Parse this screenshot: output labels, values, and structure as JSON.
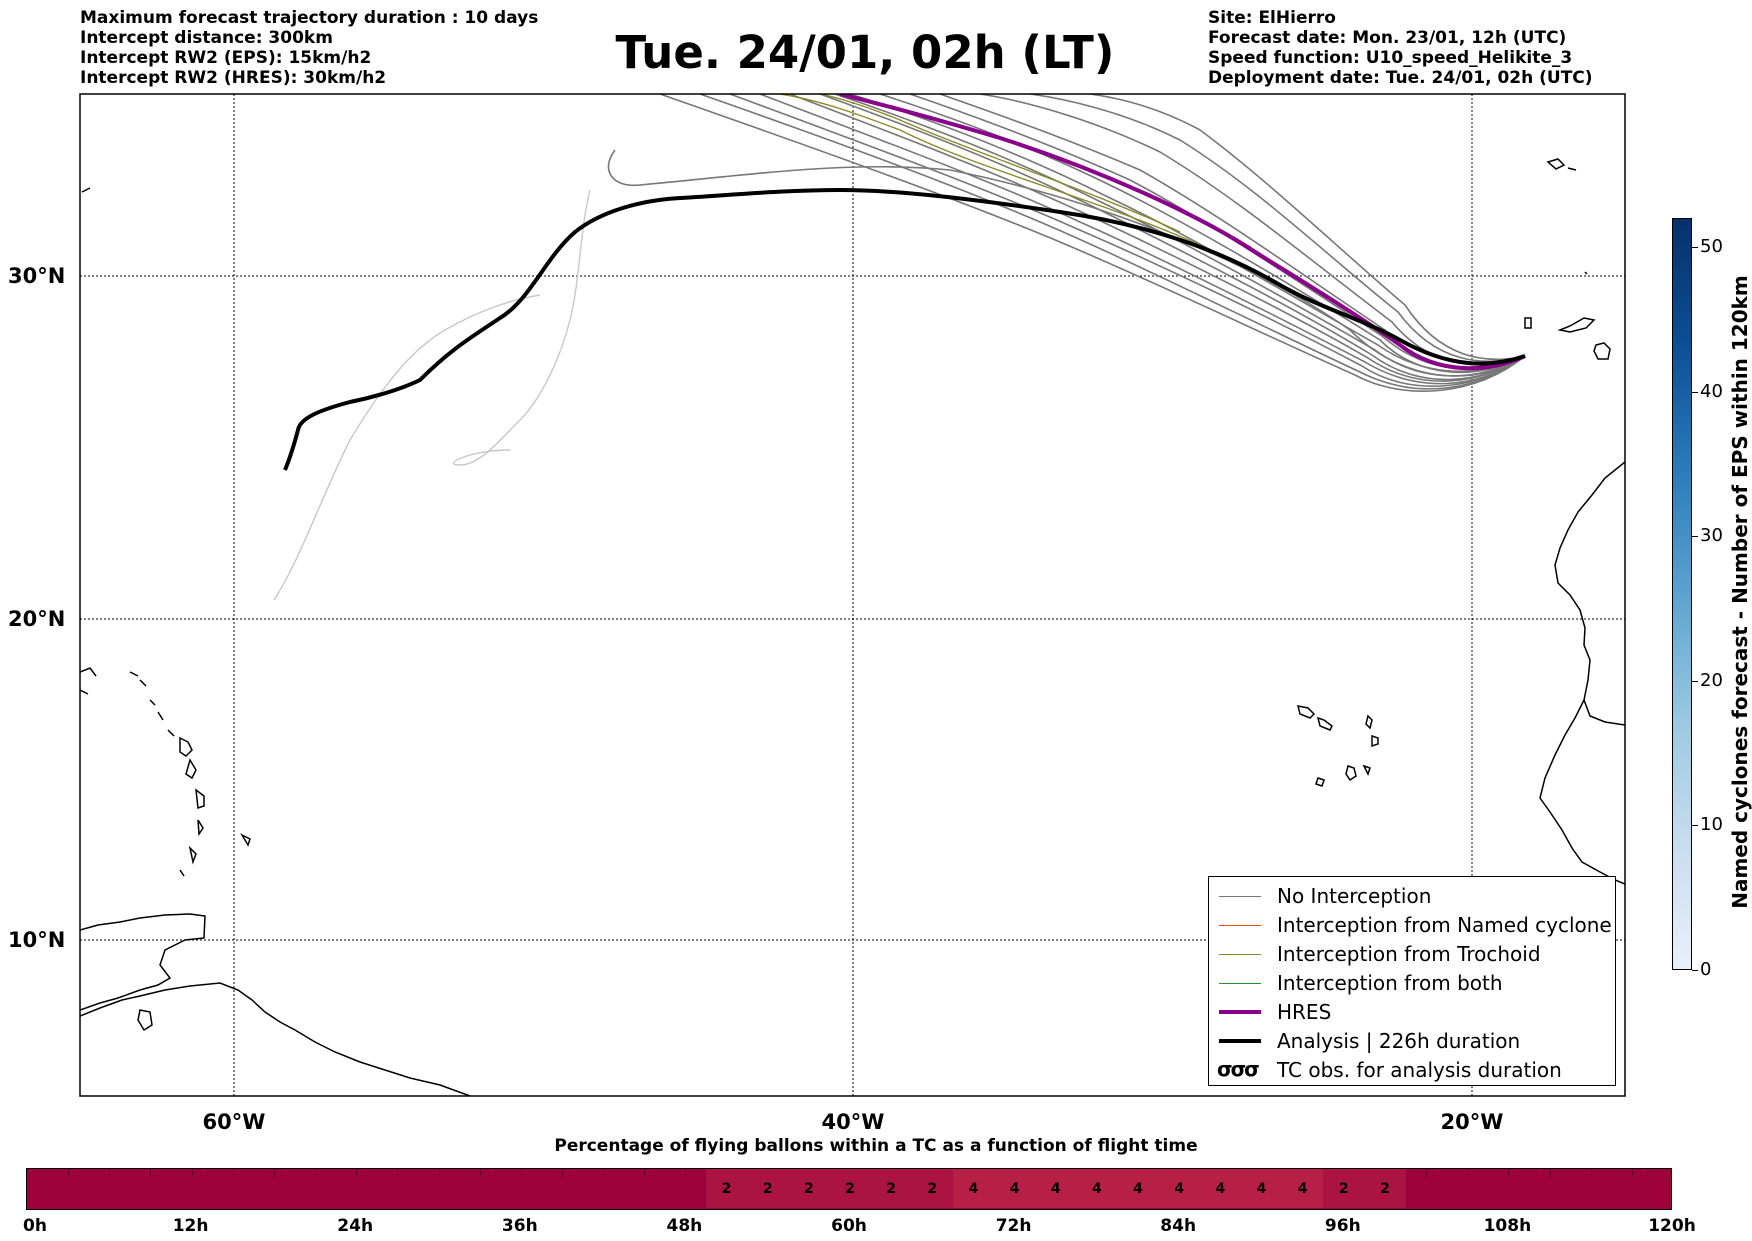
{
  "header": {
    "left_lines": [
      "Maximum forecast trajectory duration : 10 days",
      "Intercept distance: 300km",
      "Intercept RW2 (EPS):  15km/h2",
      "Intercept RW2 (HRES): 30km/h2"
    ],
    "title": "Tue. 24/01, 02h (LT)",
    "right_lines": [
      "Site: ElHierro",
      "Forecast date: Mon. 23/01, 12h (UTC)",
      "Speed function: U10_speed_Helikite_3",
      "Deployment date: Tue. 24/01, 02h (UTC)"
    ]
  },
  "map": {
    "lat_labels": [
      "30°N",
      "20°N",
      "10°N"
    ],
    "lon_labels": [
      "60°W",
      "40°W",
      "20°W"
    ],
    "colors": {
      "no_interception": "#777777",
      "named_cyclone": "#e8501c",
      "trochoid": "#8a8a2a",
      "both": "#2e8b2e",
      "hres": "#8b008b",
      "analysis": "#000000"
    }
  },
  "legend": {
    "items": [
      {
        "label": "No Interception"
      },
      {
        "label": "Interception from Named cyclone"
      },
      {
        "label": "Interception from Trochoid"
      },
      {
        "label": "Interception from both"
      },
      {
        "label": "HRES"
      },
      {
        "label": "Analysis | 226h duration"
      },
      {
        "label": "TC obs. for analysis duration",
        "symbol": "σσσ"
      }
    ]
  },
  "colorbar": {
    "label": "Named cyclones forecast - Number of EPS within 120km",
    "ticks": [
      "0",
      "10",
      "20",
      "30",
      "40",
      "50"
    ],
    "max": 52
  },
  "timeline": {
    "title": "Percentage of flying ballons within a TC as a function of flight time",
    "tick_labels": [
      "0h",
      "12h",
      "24h",
      "36h",
      "48h",
      "60h",
      "72h",
      "84h",
      "96h",
      "108h",
      "120h"
    ],
    "cells": [
      {
        "hour": 51,
        "value": "2"
      },
      {
        "hour": 54,
        "value": "2"
      },
      {
        "hour": 57,
        "value": "2"
      },
      {
        "hour": 60,
        "value": "2"
      },
      {
        "hour": 63,
        "value": "2"
      },
      {
        "hour": 66,
        "value": "2"
      },
      {
        "hour": 69,
        "value": "4"
      },
      {
        "hour": 72,
        "value": "4"
      },
      {
        "hour": 75,
        "value": "4"
      },
      {
        "hour": 78,
        "value": "4"
      },
      {
        "hour": 81,
        "value": "4"
      },
      {
        "hour": 84,
        "value": "4"
      },
      {
        "hour": 87,
        "value": "4"
      },
      {
        "hour": 90,
        "value": "4"
      },
      {
        "hour": 93,
        "value": "4"
      },
      {
        "hour": 96,
        "value": "2"
      },
      {
        "hour": 99,
        "value": "2"
      }
    ]
  }
}
